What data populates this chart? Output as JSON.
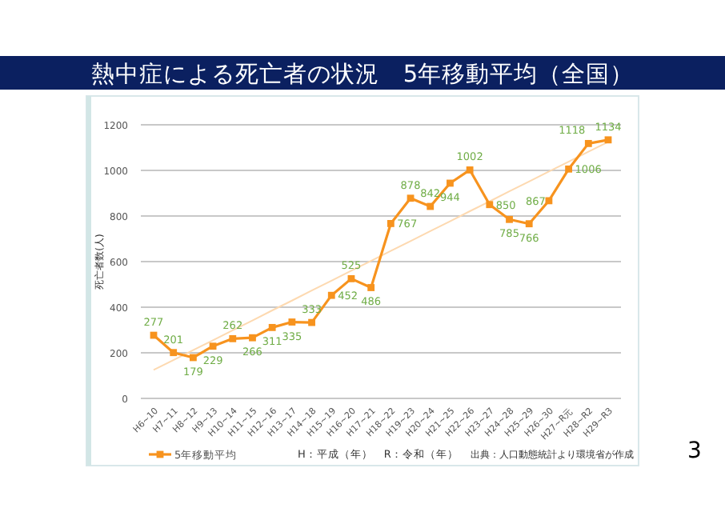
{
  "chart_data": {
    "type": "line",
    "title": "熱中症による死亡者の状況　5年移動平均（全国）",
    "ylabel": "死亡者数(人)",
    "categories": [
      "H6~10",
      "H7~11",
      "H8~12",
      "H9~13",
      "H10~14",
      "H11~15",
      "H12~16",
      "H13~17",
      "H14~18",
      "H15~19",
      "H16~20",
      "H17~21",
      "H18~22",
      "H19~23",
      "H20~24",
      "H21~25",
      "H22~26",
      "H23~27",
      "H24~28",
      "H25~29",
      "H26~30",
      "H27~R元",
      "H28~R2",
      "H29~R3"
    ],
    "series": [
      {
        "name": "5年移動平均",
        "color": "#f7931e",
        "marker": "square",
        "values": [
          277,
          201,
          179,
          229,
          262,
          266,
          311,
          335,
          333,
          452,
          525,
          486,
          767,
          878,
          842,
          944,
          1002,
          850,
          785,
          766,
          867,
          1006,
          1118,
          1134
        ],
        "value_labels": [
          "277",
          "201",
          "179",
          "229",
          "262",
          "266",
          "311",
          "335",
          "333",
          "452",
          "525",
          "486",
          "767",
          "878",
          "842",
          "944",
          "1002",
          "850",
          "785",
          "766",
          "867",
          "1006",
          "1118",
          "1134"
        ]
      },
      {
        "type": "line",
        "color": "#fdd9b0",
        "marker": "none",
        "values": [
          125,
          168,
          212,
          255,
          299,
          342,
          386,
          429,
          473,
          516,
          560,
          603,
          647,
          690,
          734,
          777,
          821,
          864,
          908,
          951,
          995,
          1038,
          1082,
          1125
        ]
      }
    ],
    "ylim": [
      0,
      1200
    ],
    "yticks": [
      0,
      200,
      400,
      600,
      800,
      1000,
      1200
    ],
    "grid": "y",
    "legend": "bottom left",
    "annotations": [
      "H：平成（年）　R：令和（年）",
      "出典：人口動態統計より環境省が作成",
      "3"
    ]
  }
}
